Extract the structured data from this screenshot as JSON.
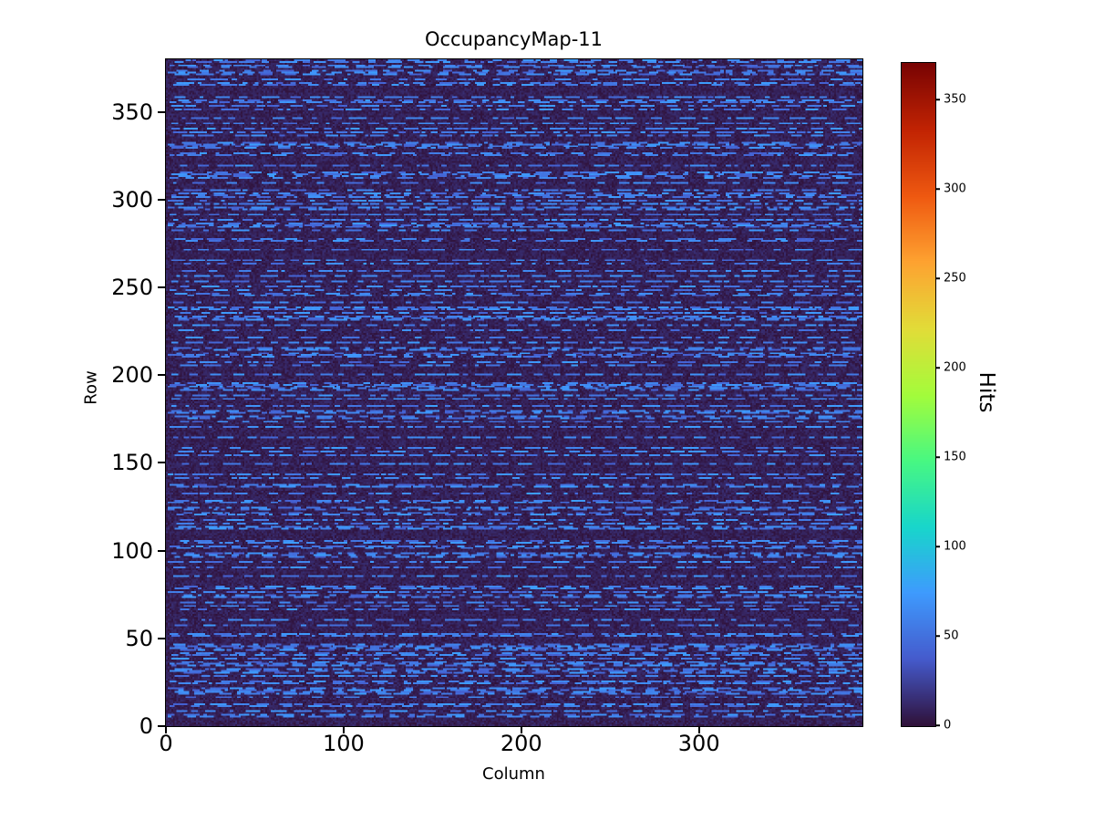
{
  "figure": {
    "background": "#ffffff"
  },
  "chart_data": {
    "type": "heatmap",
    "title": "OccupancyMap-11",
    "xlabel": "Column",
    "ylabel": "Row",
    "colorbar_label": "Hits",
    "n_cols": 392,
    "n_rows": 380,
    "x_range": [
      0,
      392
    ],
    "y_range": [
      0,
      380
    ],
    "x_ticks": [
      0,
      100,
      200,
      300
    ],
    "y_ticks": [
      0,
      50,
      100,
      150,
      200,
      250,
      300,
      350
    ],
    "colorbar_ticks": [
      0,
      50,
      100,
      150,
      200,
      250,
      300,
      350
    ],
    "vmin": 0,
    "vmax": 371,
    "colormap": "turbo",
    "colormap_stops": [
      [
        48,
        18,
        59
      ],
      [
        69,
        91,
        205
      ],
      [
        62,
        155,
        254
      ],
      [
        24,
        214,
        203
      ],
      [
        72,
        248,
        130
      ],
      [
        164,
        252,
        59
      ],
      [
        226,
        220,
        56
      ],
      [
        254,
        163,
        49
      ],
      [
        239,
        89,
        17
      ],
      [
        194,
        36,
        3
      ],
      [
        122,
        4,
        3
      ]
    ],
    "pattern": {
      "seed": 11,
      "description": "mostly near-zero dark background with horizontal dashed streaks of hits around 40-75",
      "streak_row_probability": 0.4,
      "background_value_max": 14,
      "dash_value_min": 40,
      "dash_value_max": 75,
      "dash_len_min": 2,
      "dash_len_max": 11,
      "gap_len_min": 1,
      "gap_len_max": 18
    }
  }
}
